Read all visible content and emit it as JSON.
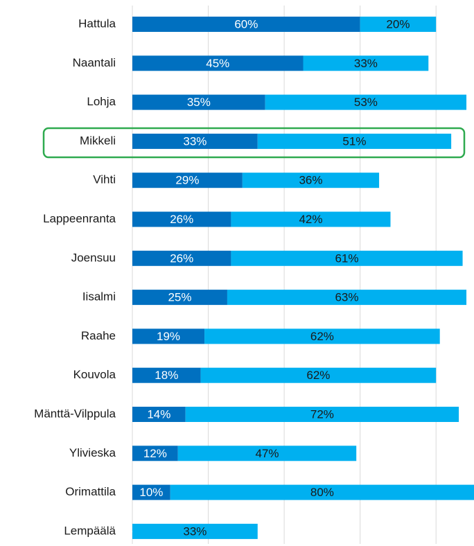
{
  "chart_data": {
    "type": "stacked-barh",
    "categories": [
      "Hattula",
      "Naantali",
      "Lohja",
      "Mikkeli",
      "Vihti",
      "Lappeenranta",
      "Joensuu",
      "Iisalmi",
      "Raahe",
      "Kouvola",
      "Mänttä-Vilppula",
      "Ylivieska",
      "Orimattila",
      "Lempäälä"
    ],
    "series": [
      {
        "color": "#0070c0",
        "label_color": "#ffffff",
        "values": [
          60,
          45,
          35,
          33,
          29,
          26,
          26,
          25,
          19,
          18,
          14,
          12,
          10,
          0
        ],
        "value_labels": [
          "60%",
          "45%",
          "35%",
          "33%",
          "29%",
          "26%",
          "26%",
          "25%",
          "19%",
          "18%",
          "14%",
          "12%",
          "10%",
          "%"
        ]
      },
      {
        "color": "#00b0f0",
        "label_color": "#1a1a1a",
        "values": [
          20,
          33,
          53,
          51,
          36,
          42,
          61,
          63,
          62,
          62,
          72,
          47,
          80,
          33
        ],
        "value_labels": [
          "20%",
          "33%",
          "53%",
          "51%",
          "36%",
          "42%",
          "61%",
          "63%",
          "62%",
          "62%",
          "72%",
          "47%",
          "80%",
          "33%"
        ]
      }
    ],
    "xlim": [
      0,
      90
    ],
    "xticks": [
      0,
      20,
      40,
      60,
      80
    ],
    "grid": true
  }
}
